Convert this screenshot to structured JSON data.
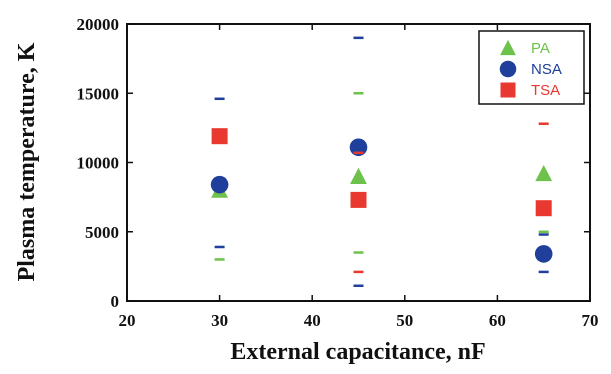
{
  "chart_data": {
    "type": "scatter",
    "title": "",
    "xlabel": "External capacitance, nF",
    "ylabel": "Plasma temperature, K",
    "xlim": [
      20,
      70
    ],
    "ylim": [
      0,
      20000
    ],
    "xticks": [
      20,
      30,
      40,
      50,
      60,
      70
    ],
    "yticks": [
      0,
      5000,
      10000,
      15000,
      20000
    ],
    "x_tick_labels": [
      "20",
      "30",
      "40",
      "50",
      "60",
      "70"
    ],
    "y_tick_labels": [
      "0",
      "5000",
      "10000",
      "15000",
      "20000"
    ],
    "grid": false,
    "legend_position": "top-right",
    "series": [
      {
        "name": "PA",
        "marker": "triangle",
        "color": "#6cc24a",
        "points": [
          {
            "x": 30,
            "y": 8000,
            "err_low": 3000,
            "err_high": 8000
          },
          {
            "x": 45,
            "y": 9000,
            "err_low": 3500,
            "err_high": 15000
          },
          {
            "x": 65,
            "y": 9200,
            "err_low": 5000,
            "err_high": 9200
          }
        ]
      },
      {
        "name": "NSA",
        "marker": "circle",
        "color": "#1f3f9a",
        "points": [
          {
            "x": 30,
            "y": 8400,
            "err_low": 3900,
            "err_high": 14600
          },
          {
            "x": 45,
            "y": 11100,
            "err_low": 1100,
            "err_high": 19000
          },
          {
            "x": 65,
            "y": 3400,
            "err_low": 2100,
            "err_high": 4800
          }
        ]
      },
      {
        "name": "TSA",
        "marker": "square",
        "color": "#e8382f",
        "points": [
          {
            "x": 30,
            "y": 11900,
            "err_low": 11900,
            "err_high": 11900
          },
          {
            "x": 45,
            "y": 7300,
            "err_low": 2100,
            "err_high": 10700
          },
          {
            "x": 65,
            "y": 6700,
            "err_low": 6700,
            "err_high": 12800
          }
        ]
      }
    ]
  }
}
